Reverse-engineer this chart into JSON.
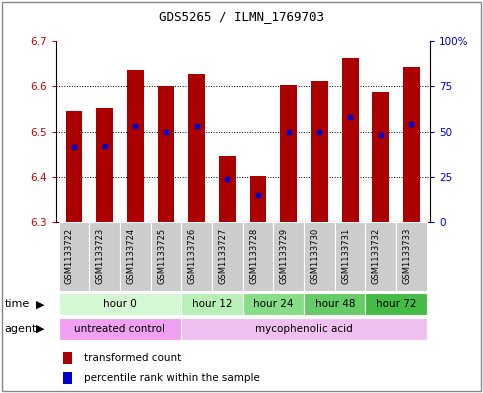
{
  "title": "GDS5265 / ILMN_1769703",
  "samples": [
    "GSM1133722",
    "GSM1133723",
    "GSM1133724",
    "GSM1133725",
    "GSM1133726",
    "GSM1133727",
    "GSM1133728",
    "GSM1133729",
    "GSM1133730",
    "GSM1133731",
    "GSM1133732",
    "GSM1133733"
  ],
  "bar_bottom": 6.3,
  "bar_tops": [
    6.545,
    6.553,
    6.637,
    6.602,
    6.627,
    6.447,
    6.402,
    6.603,
    6.612,
    6.664,
    6.587,
    6.643
  ],
  "percentile_vals": [
    6.467,
    6.468,
    6.512,
    6.5,
    6.513,
    6.396,
    6.36,
    6.5,
    6.5,
    6.533,
    6.492,
    6.517
  ],
  "ylim": [
    6.3,
    6.7
  ],
  "yticks": [
    6.3,
    6.4,
    6.5,
    6.6,
    6.7
  ],
  "y2lim": [
    0,
    100
  ],
  "y2ticks": [
    0,
    25,
    50,
    75,
    100
  ],
  "y2ticklabels": [
    "0",
    "25",
    "50",
    "75",
    "100%"
  ],
  "bar_color": "#aa0000",
  "percentile_color": "#0000cc",
  "grid_color": "#000000",
  "bar_width": 0.55,
  "time_groups": [
    {
      "label": "hour 0",
      "start": 0,
      "end": 4,
      "color": "#d4f7d4"
    },
    {
      "label": "hour 12",
      "start": 4,
      "end": 6,
      "color": "#b8f0b8"
    },
    {
      "label": "hour 24",
      "start": 6,
      "end": 8,
      "color": "#88dd88"
    },
    {
      "label": "hour 48",
      "start": 8,
      "end": 10,
      "color": "#66cc66"
    },
    {
      "label": "hour 72",
      "start": 10,
      "end": 12,
      "color": "#44bb44"
    }
  ],
  "agent_groups": [
    {
      "label": "untreated control",
      "start": 0,
      "end": 4,
      "color": "#f0a0f0"
    },
    {
      "label": "mycophenolic acid",
      "start": 4,
      "end": 12,
      "color": "#f0c0f0"
    }
  ],
  "legend_items": [
    {
      "label": "transformed count",
      "color": "#aa0000"
    },
    {
      "label": "percentile rank within the sample",
      "color": "#0000cc"
    }
  ]
}
